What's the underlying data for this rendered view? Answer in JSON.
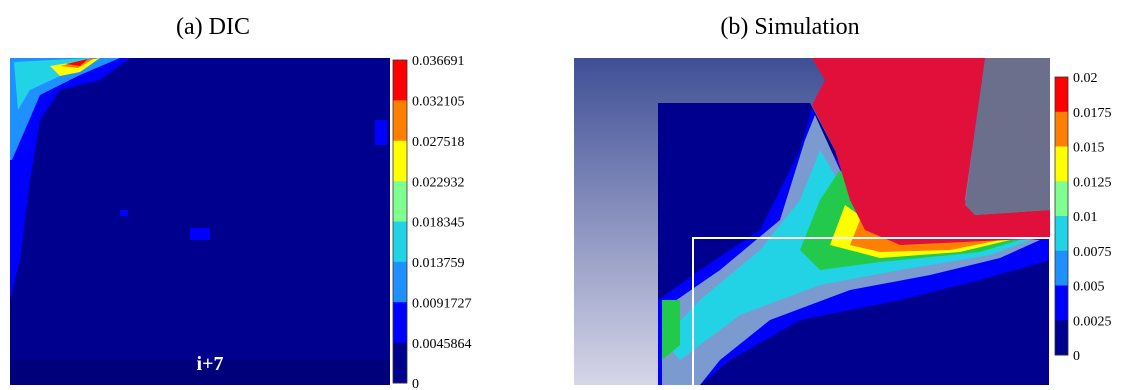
{
  "panels": [
    {
      "title": "(a) DIC",
      "annotation": "i+7",
      "colorbar": [
        "0.036691",
        "0.032105",
        "0.027518",
        "0.022932",
        "0.018345",
        "0.013759",
        "0.0091727",
        "0.0045864",
        "0"
      ]
    },
    {
      "title": "(b) Simulation",
      "colorbar": [
        "0.02",
        "0.0175",
        "0.015",
        "0.0125",
        "0.01",
        "0.0075",
        "0.005",
        "0.0025",
        "0"
      ]
    }
  ]
}
